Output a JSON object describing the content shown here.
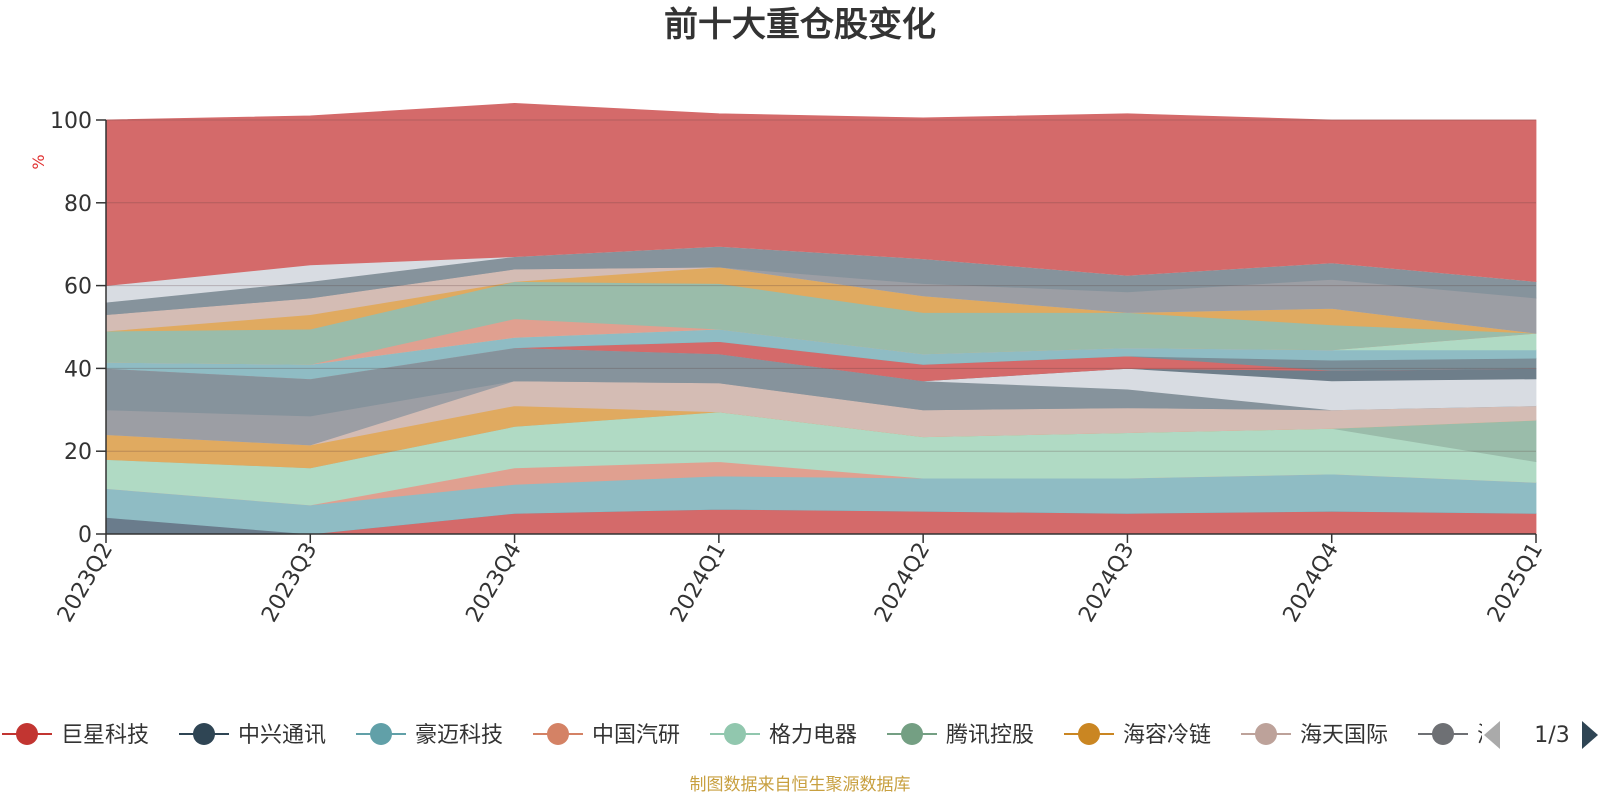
{
  "chart_data": {
    "type": "area",
    "stacked": true,
    "title": "前十大重仓股变化",
    "ylabel": "%",
    "ylim": [
      0,
      100
    ],
    "yticks": [
      0,
      20,
      40,
      60,
      80,
      100
    ],
    "grid": true,
    "categories": [
      "2023Q2",
      "2023Q3",
      "2023Q4",
      "2024Q1",
      "2024Q2",
      "2024Q3",
      "2024Q4",
      "2025Q1"
    ],
    "series": [
      {
        "name": "巨星科技",
        "color": "#d46a6a",
        "values": [
          0,
          0,
          5,
          6,
          5.5,
          5,
          5.5,
          5
        ]
      },
      {
        "name": "中兴通讯",
        "color": "#6a7c8c",
        "values": [
          4,
          0,
          0,
          0,
          0,
          0,
          0,
          0
        ]
      },
      {
        "name": "豪迈科技",
        "color": "#8fbcc4",
        "values": [
          7,
          7,
          7,
          8,
          8,
          8.5,
          9,
          7.5
        ]
      },
      {
        "name": "中国汽研",
        "color": "#e0a090",
        "values": [
          0,
          0,
          4,
          3.5,
          0,
          0,
          0,
          0
        ]
      },
      {
        "name": "格力电器",
        "color": "#b0dac4",
        "values": [
          7,
          9,
          10,
          12,
          10,
          11,
          11,
          5
        ]
      },
      {
        "name": "腾讯控股",
        "color": "#9abcaa",
        "values": [
          0,
          0,
          0,
          0,
          0,
          0,
          0,
          10
        ]
      },
      {
        "name": "海容冷链",
        "color": "#e0aa60",
        "values": [
          6,
          5.5,
          5,
          0,
          0,
          0,
          0,
          0
        ]
      },
      {
        "name": "海天国际",
        "color": "#d4bcb4",
        "values": [
          0,
          0,
          6,
          7,
          6.5,
          6,
          4.5,
          3.5
        ]
      },
      {
        "name": "",
        "color": "#9c9ea4",
        "values": [
          6,
          7,
          0,
          0,
          0,
          0,
          0,
          0
        ]
      },
      {
        "name": "",
        "color": "#86939c",
        "values": [
          10,
          9,
          8,
          7,
          7,
          4.5,
          0,
          0
        ]
      },
      {
        "name": "",
        "color": "#d8dce2",
        "values": [
          0,
          0,
          0,
          0,
          0,
          5,
          7,
          6.5
        ]
      },
      {
        "name": "",
        "color": "#6e7e8a",
        "values": [
          0,
          0,
          0,
          0,
          0,
          0,
          2.5,
          2.5
        ]
      },
      {
        "name": "",
        "color": "#d46a6a",
        "values": [
          0,
          0,
          0,
          3,
          4,
          3,
          0,
          0
        ]
      },
      {
        "name": "",
        "color": "#7a8e98",
        "values": [
          0,
          0,
          0,
          0,
          0,
          0,
          2.5,
          2.5
        ]
      },
      {
        "name": "",
        "color": "#8fbcc4",
        "values": [
          1.5,
          3.5,
          2.5,
          3,
          2.5,
          2,
          2.5,
          2
        ]
      },
      {
        "name": "",
        "color": "#b0dac4",
        "values": [
          0,
          0,
          0,
          0,
          0,
          0,
          0,
          4
        ]
      },
      {
        "name": "",
        "color": "#e0a090",
        "values": [
          0,
          0,
          4.5,
          0,
          0,
          0,
          0,
          0
        ]
      },
      {
        "name": "",
        "color": "#9abcaa",
        "values": [
          7.5,
          8.5,
          9,
          11,
          10,
          8.5,
          6,
          0
        ]
      },
      {
        "name": "",
        "color": "#e0aa60",
        "values": [
          0,
          3.5,
          0,
          4,
          4,
          0,
          4,
          0
        ]
      },
      {
        "name": "",
        "color": "#d4bcb4",
        "values": [
          4,
          4,
          3,
          0,
          0,
          0,
          0,
          0
        ]
      },
      {
        "name": "",
        "color": "#9c9ea4",
        "values": [
          0,
          0,
          0,
          0,
          3,
          5,
          7,
          8.5
        ]
      },
      {
        "name": "",
        "color": "#86939c",
        "values": [
          3,
          4,
          3,
          5,
          6,
          4,
          4,
          4
        ]
      },
      {
        "name": "",
        "color": "#d8dce2",
        "values": [
          4,
          4,
          0,
          0,
          0,
          0,
          0,
          0
        ]
      },
      {
        "name": "",
        "color": "#d46a6a",
        "values": [
          40,
          36,
          37,
          32,
          34,
          39,
          34.5,
          39
        ]
      }
    ]
  },
  "legend": {
    "items": [
      {
        "name": "巨星科技",
        "color": "#c23531"
      },
      {
        "name": "中兴通讯",
        "color": "#2f4554"
      },
      {
        "name": "豪迈科技",
        "color": "#61a0a8"
      },
      {
        "name": "中国汽研",
        "color": "#d48265"
      },
      {
        "name": "格力电器",
        "color": "#91c7ae"
      },
      {
        "name": "腾讯控股",
        "color": "#749f83"
      },
      {
        "name": "海容冷链",
        "color": "#ca8622"
      },
      {
        "name": "海天国际",
        "color": "#bda29a"
      },
      {
        "name": "海",
        "color": "#6e7074"
      }
    ],
    "page": "1/3"
  },
  "source": "制图数据来自恒生聚源数据库"
}
